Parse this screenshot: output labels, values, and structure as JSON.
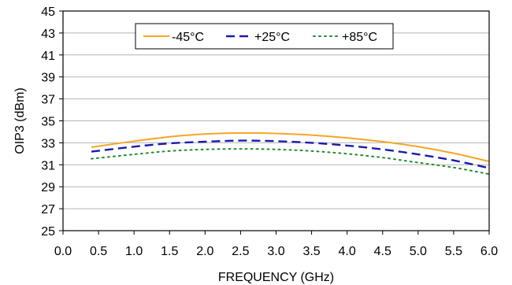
{
  "chart_data": {
    "type": "line",
    "title": "",
    "xlabel": "FREQUENCY  (GHz)",
    "ylabel": "OIP3 (dBm)",
    "xlim": [
      0.0,
      6.0
    ],
    "ylim": [
      25,
      45
    ],
    "xticks": [
      "0.0",
      "0.5",
      "1.0",
      "1.5",
      "2.0",
      "2.5",
      "3.0",
      "3.5",
      "4.0",
      "4.5",
      "5.0",
      "5.5",
      "6.0"
    ],
    "yticks": [
      "25",
      "27",
      "29",
      "31",
      "33",
      "35",
      "37",
      "39",
      "41",
      "43",
      "45"
    ],
    "grid": true,
    "legend_position": "top-left",
    "series": [
      {
        "name": "-45°C",
        "color": "#F5A623",
        "style": "solid",
        "x": [
          0.4,
          1.0,
          1.5,
          2.0,
          2.5,
          3.0,
          3.5,
          4.0,
          4.5,
          5.0,
          5.5,
          6.0
        ],
        "y": [
          32.6,
          33.15,
          33.55,
          33.8,
          33.9,
          33.85,
          33.7,
          33.45,
          33.1,
          32.65,
          32.05,
          31.3
        ]
      },
      {
        "name": "+25°C",
        "color": "#1A1AB0",
        "style": "dash",
        "x": [
          0.4,
          1.0,
          1.5,
          2.0,
          2.5,
          3.0,
          3.5,
          4.0,
          4.5,
          5.0,
          5.5,
          6.0
        ],
        "y": [
          32.2,
          32.65,
          32.95,
          33.1,
          33.2,
          33.15,
          33.0,
          32.75,
          32.4,
          31.95,
          31.4,
          30.7
        ]
      },
      {
        "name": "+85°C",
        "color": "#1E8C2E",
        "style": "dot",
        "x": [
          0.4,
          1.0,
          1.5,
          2.0,
          2.5,
          3.0,
          3.5,
          4.0,
          4.5,
          5.0,
          5.5,
          6.0
        ],
        "y": [
          31.55,
          31.95,
          32.25,
          32.4,
          32.45,
          32.4,
          32.25,
          32.0,
          31.65,
          31.2,
          30.75,
          30.15
        ]
      }
    ]
  }
}
